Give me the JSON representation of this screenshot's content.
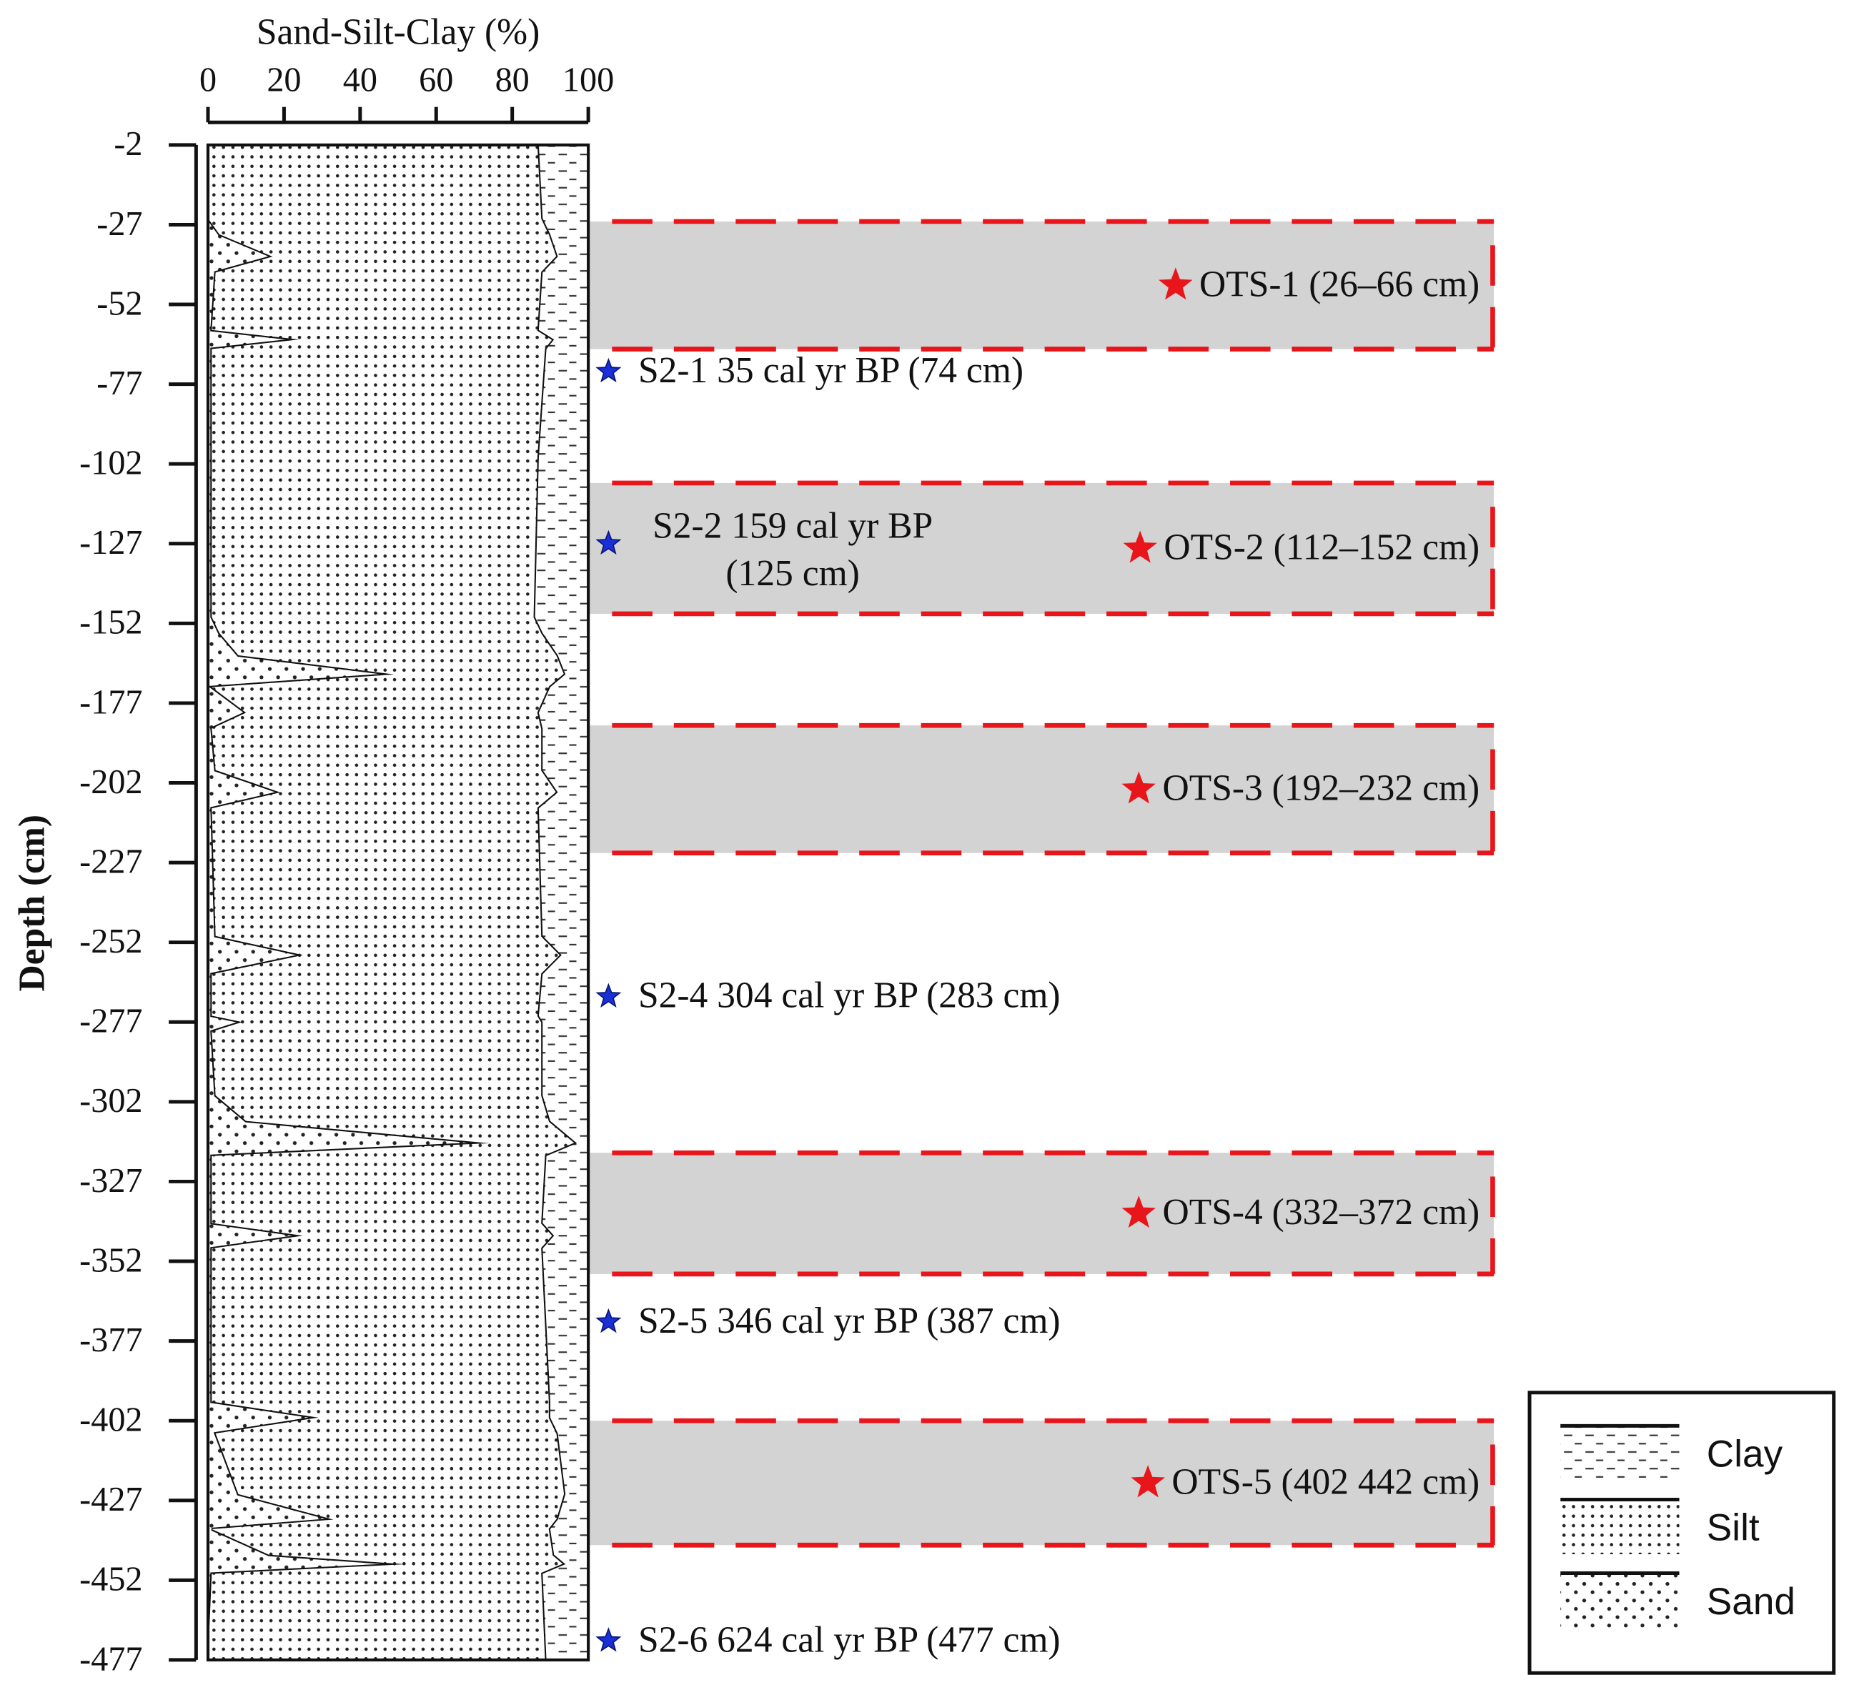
{
  "chart_data": {
    "type": "area",
    "title": "Sand-Silt-Clay (%)",
    "y_label": "Depth (cm)",
    "xlim": [
      0,
      100
    ],
    "xticks": [
      0,
      20,
      40,
      60,
      80,
      100
    ],
    "ylim": [
      -2,
      -477
    ],
    "yticks": [
      -2,
      -27,
      -52,
      -77,
      -102,
      -127,
      -152,
      -177,
      -202,
      -227,
      -252,
      -277,
      -302,
      -327,
      -352,
      -377,
      -402,
      -427,
      -452,
      -477
    ],
    "depth": [
      -2,
      -25,
      -30,
      -37,
      -42,
      -60,
      -63,
      -66,
      -100,
      -150,
      -155,
      -162,
      -168,
      -172,
      -180,
      -185,
      -198,
      -205,
      -210,
      -250,
      -256,
      -262,
      -275,
      -277,
      -280,
      -300,
      -308,
      -315,
      -319,
      -340,
      -344,
      -348,
      -396,
      -401,
      -406,
      -425,
      -433,
      -436,
      -444,
      -447,
      -450,
      -477
    ],
    "series": [
      {
        "name": "Sand",
        "values": [
          0,
          0,
          3,
          17,
          2,
          1,
          24,
          1,
          1,
          1,
          3,
          8,
          49,
          1,
          10,
          1,
          2,
          19,
          1,
          2,
          25,
          1,
          1,
          9,
          1,
          2,
          10,
          74,
          1,
          1,
          25,
          1,
          1,
          29,
          2,
          8,
          33,
          1,
          16,
          52,
          1,
          0
        ]
      },
      {
        "name": "Silt",
        "values": [
          87,
          88,
          87,
          75,
          86,
          86,
          67,
          88,
          86,
          85,
          85,
          84,
          45,
          89,
          77,
          87,
          86,
          73,
          86,
          86,
          68,
          87,
          86,
          79,
          87,
          86,
          80,
          23,
          88,
          87,
          66,
          87,
          89,
          61,
          90,
          86,
          59,
          89,
          75,
          42,
          87,
          89
        ]
      },
      {
        "name": "Clay",
        "values": [
          13,
          12,
          10,
          8,
          12,
          13,
          9,
          11,
          13,
          14,
          12,
          8,
          6,
          10,
          13,
          12,
          12,
          8,
          13,
          12,
          7,
          12,
          13,
          12,
          12,
          12,
          10,
          3,
          11,
          12,
          9,
          12,
          10,
          10,
          8,
          6,
          8,
          10,
          9,
          6,
          12,
          11
        ]
      }
    ],
    "zones": [
      {
        "label": "OTS-1 (26–66 cm)",
        "top": -26,
        "bottom": -66
      },
      {
        "label": "OTS-2 (112–152 cm)",
        "top": -108,
        "bottom": -149
      },
      {
        "label": "OTS-3 (192–232 cm)",
        "top": -184,
        "bottom": -224
      },
      {
        "label": "OTS-4 (332–372 cm)",
        "top": -318,
        "bottom": -356
      },
      {
        "label": "OTS-5 (402  442 cm)",
        "top": -402,
        "bottom": -441
      }
    ],
    "samples": [
      {
        "label": [
          "S2-1 35 cal yr BP (74 cm)"
        ],
        "depth": -73
      },
      {
        "label": [
          "S2-2 159 cal yr BP",
          "(125 cm)"
        ],
        "depth": -127
      },
      {
        "label": [
          "S2-4 304 cal yr BP (283 cm)"
        ],
        "depth": -269
      },
      {
        "label": [
          "S2-5 346 cal yr BP (387 cm)"
        ],
        "depth": -371
      },
      {
        "label": [
          "S2-6 624 cal yr BP (477 cm)"
        ],
        "depth": -471
      }
    ],
    "grid": false
  }
}
